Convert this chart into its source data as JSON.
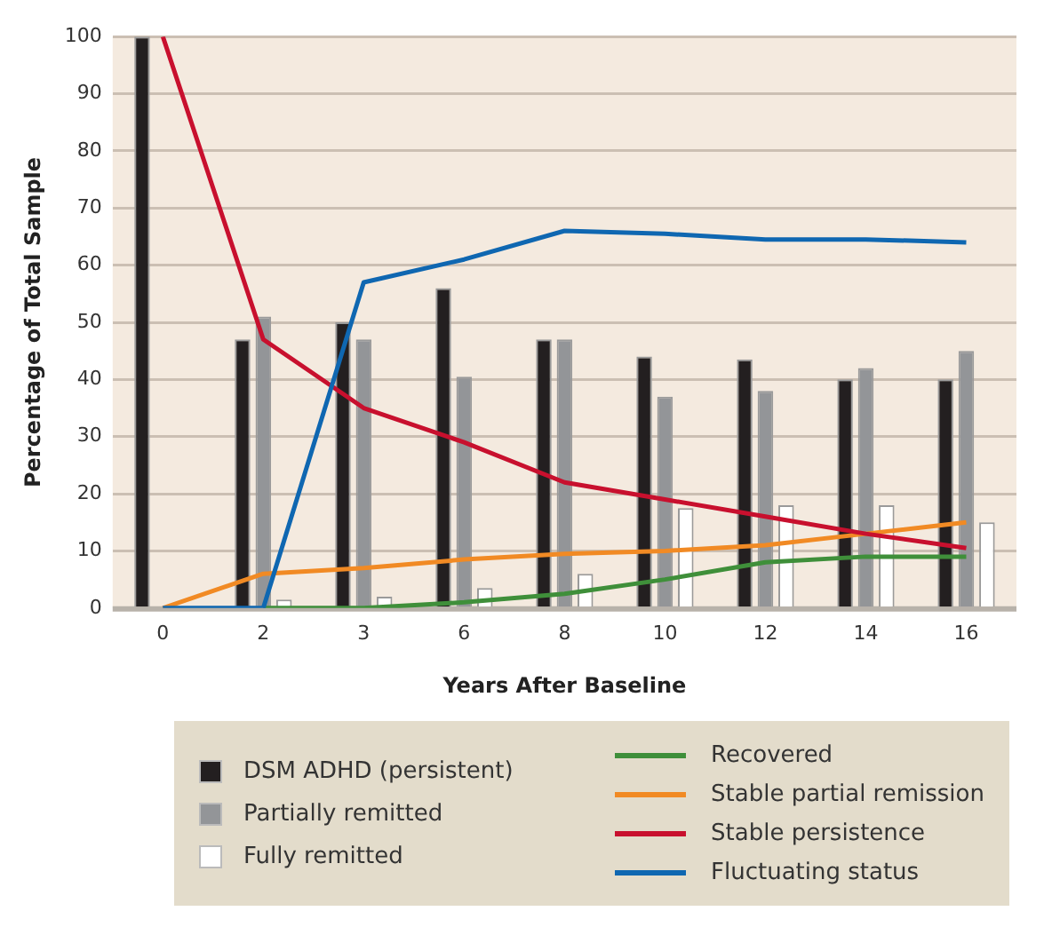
{
  "chart_data": {
    "type": "bar",
    "xlabel": "Years After Baseline",
    "ylabel": "Percentage of Total Sample",
    "categories": [
      "0",
      "2",
      "3",
      "6",
      "8",
      "10",
      "12",
      "14",
      "16"
    ],
    "series": [
      {
        "name": "DSM ADHD (persistent)",
        "color": "#231f20",
        "values": [
          100,
          47,
          50,
          56,
          47,
          44,
          43.5,
          40,
          40
        ]
      },
      {
        "name": "Partially remitted",
        "color": "#939598",
        "values": [
          null,
          51,
          47,
          40.5,
          47,
          37,
          38,
          42,
          45
        ]
      },
      {
        "name": "Fully remitted",
        "color": "#ffffff",
        "values": [
          null,
          1.5,
          2,
          3.5,
          6,
          17.5,
          18,
          18,
          15
        ]
      },
      {
        "name": "Recovered",
        "type": "line",
        "color": "#3f8f3a",
        "values": [
          null,
          0,
          0,
          1,
          2.5,
          5,
          8,
          9,
          9
        ]
      },
      {
        "name": "Stable partial remission",
        "type": "line",
        "color": "#f18a24",
        "values": [
          0,
          6,
          7,
          8.5,
          9.5,
          10,
          11,
          13,
          15
        ]
      },
      {
        "name": "Stable persistence",
        "type": "line",
        "color": "#c8102e",
        "values": [
          100,
          47,
          35,
          29,
          22,
          19,
          16,
          13,
          10.5
        ]
      },
      {
        "name": "Fluctuating status",
        "type": "line",
        "color": "#0f67b1",
        "values": [
          0,
          0,
          57,
          61,
          66,
          65.5,
          64.5,
          64.5,
          64
        ]
      }
    ],
    "ylim": [
      0,
      100
    ],
    "yticks": [
      0,
      10,
      20,
      30,
      40,
      50,
      60,
      70,
      80,
      90,
      100
    ],
    "grid": "y",
    "legend": "bottom",
    "marker": "none",
    "line_style": "solid"
  }
}
